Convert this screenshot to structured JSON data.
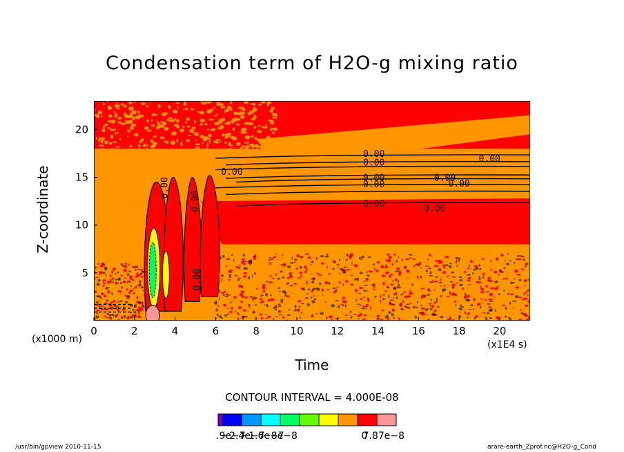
{
  "chart_data": {
    "type": "heatmap",
    "title": "Condensation term of H2O-g mixing ratio",
    "xlabel": "Time",
    "ylabel": "Z-coordinate",
    "x_unit": "(x1E4 s)",
    "y_unit": "(x1000 m)",
    "xlim": [
      0,
      21.5
    ],
    "ylim": [
      0,
      23
    ],
    "xticks": [
      "0",
      "2",
      "4",
      "6",
      "8",
      "10",
      "12",
      "14",
      "16",
      "18",
      "20"
    ],
    "yticks": [
      "5",
      "10",
      "15",
      "20"
    ],
    "contour_interval": "CONTOUR INTERVAL = 4.000E-08",
    "contour_labels": [
      {
        "text": "0.00",
        "x": 6.8,
        "y": 15.5
      },
      {
        "text": "0.00",
        "x": 13.8,
        "y": 17.4
      },
      {
        "text": "0.00",
        "x": 13.8,
        "y": 16.5
      },
      {
        "text": "0.00",
        "x": 19.5,
        "y": 16.9
      },
      {
        "text": "0.00",
        "x": 13.8,
        "y": 14.9
      },
      {
        "text": "0.00",
        "x": 13.8,
        "y": 14.2
      },
      {
        "text": "0.00",
        "x": 17.3,
        "y": 14.9
      },
      {
        "text": "0.00",
        "x": 18.0,
        "y": 14.3
      },
      {
        "text": "0.00",
        "x": 13.8,
        "y": 12.2
      },
      {
        "text": "0.00",
        "x": 16.8,
        "y": 11.7
      },
      {
        "text": "0.00",
        "x": 3.5,
        "y": 13.9
      },
      {
        "text": "0.00",
        "x": 5.0,
        "y": 12.5
      },
      {
        "text": "0.00",
        "x": 5.1,
        "y": 4.3
      }
    ],
    "legend": {
      "colors": [
        "#7a00c8",
        "#0000ff",
        "#0096ff",
        "#00ffff",
        "#00ff64",
        "#64ff00",
        "#ffff00",
        "#ff9600",
        "#ff0000",
        "#ff9696"
      ],
      "labels": [
        "−2.9e−7",
        "−2.4e−7",
        "−1.6e−7",
        "−8e−8",
        "0",
        "7.87e−8"
      ]
    },
    "colors": {
      "background": "#ff9600",
      "upper": "#ff0000",
      "band": "#ff0000",
      "mid": "#ff9600",
      "high": "#ffff00",
      "green": "#00ff64",
      "pink": "#ff9696"
    }
  },
  "footer": {
    "left": "/usr/bin/gpview   2010-11-15",
    "right": "arare-earth_Zprof.nc@H2O-g_Cond"
  }
}
